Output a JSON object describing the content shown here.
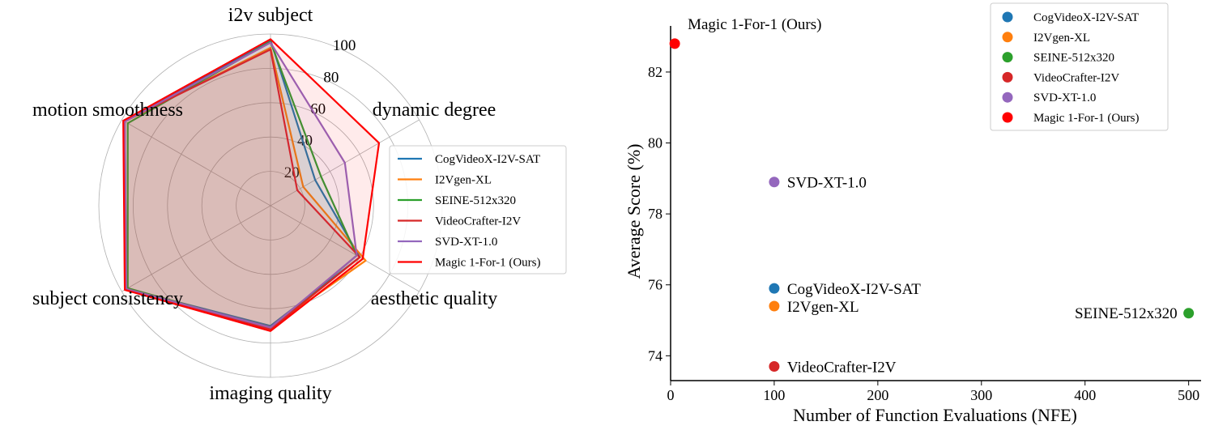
{
  "chart_data": [
    {
      "type": "radar",
      "axes": [
        "i2v subject",
        "dynamic degree",
        "aesthetic quality",
        "imaging quality",
        "subject consistency",
        "motion smoothness"
      ],
      "rticks": [
        20,
        40,
        60,
        80,
        100
      ],
      "rlim": [
        0,
        100
      ],
      "grid": true,
      "legend": "center-right",
      "series": [
        {
          "name": "CogVideoX-I2V-SAT",
          "color": "#1f77b4",
          "values": [
            96.5,
            30,
            60,
            70,
            97,
            98
          ]
        },
        {
          "name": "I2Vgen-XL",
          "color": "#ff7f0e",
          "values": [
            92,
            22,
            64,
            71,
            97.5,
            98
          ]
        },
        {
          "name": "SEINE-512x320",
          "color": "#2ca02c",
          "values": [
            95.5,
            34,
            58,
            71.5,
            96,
            96
          ]
        },
        {
          "name": "VideoCrafter-I2V",
          "color": "#d62728",
          "values": [
            91,
            18,
            60,
            72,
            98,
            98.5
          ]
        },
        {
          "name": "SVD-XT-1.0",
          "color": "#9467bd",
          "values": [
            95,
            50,
            58,
            71,
            97,
            98
          ]
        },
        {
          "name": "Magic 1-For-1 (Ours)",
          "color": "#ff0000",
          "values": [
            97,
            73,
            62,
            73,
            98,
            99
          ]
        }
      ]
    },
    {
      "type": "scatter",
      "xlabel": "Number of Function Evaluations (NFE)",
      "ylabel": "Average Score (%)",
      "xlim": [
        0,
        512
      ],
      "ylim": [
        73.3,
        83.3
      ],
      "xticks": [
        0,
        100,
        200,
        300,
        400,
        500
      ],
      "yticks": [
        74,
        76,
        78,
        80,
        82
      ],
      "legend": "top-right",
      "grid": false,
      "series": [
        {
          "name": "CogVideoX-I2V-SAT",
          "color": "#1f77b4",
          "x": 100,
          "y": 75.9,
          "label": "CogVideoX-I2V-SAT",
          "label_side": "right"
        },
        {
          "name": "I2Vgen-XL",
          "color": "#ff7f0e",
          "x": 100,
          "y": 75.4,
          "label": "I2Vgen-XL",
          "label_side": "right"
        },
        {
          "name": "SEINE-512x320",
          "color": "#2ca02c",
          "x": 500,
          "y": 75.2,
          "label": "SEINE-512x320",
          "label_side": "left"
        },
        {
          "name": "VideoCrafter-I2V",
          "color": "#d62728",
          "x": 100,
          "y": 73.7,
          "label": "VideoCrafter-I2V",
          "label_side": "right"
        },
        {
          "name": "SVD-XT-1.0",
          "color": "#9467bd",
          "x": 100,
          "y": 78.9,
          "label": "SVD-XT-1.0",
          "label_side": "right"
        },
        {
          "name": "Magic 1-For-1 (Ours)",
          "color": "#ff0000",
          "x": 4,
          "y": 82.8,
          "label": "Magic 1-For-1 (Ours)",
          "label_side": "above-right"
        }
      ]
    }
  ]
}
